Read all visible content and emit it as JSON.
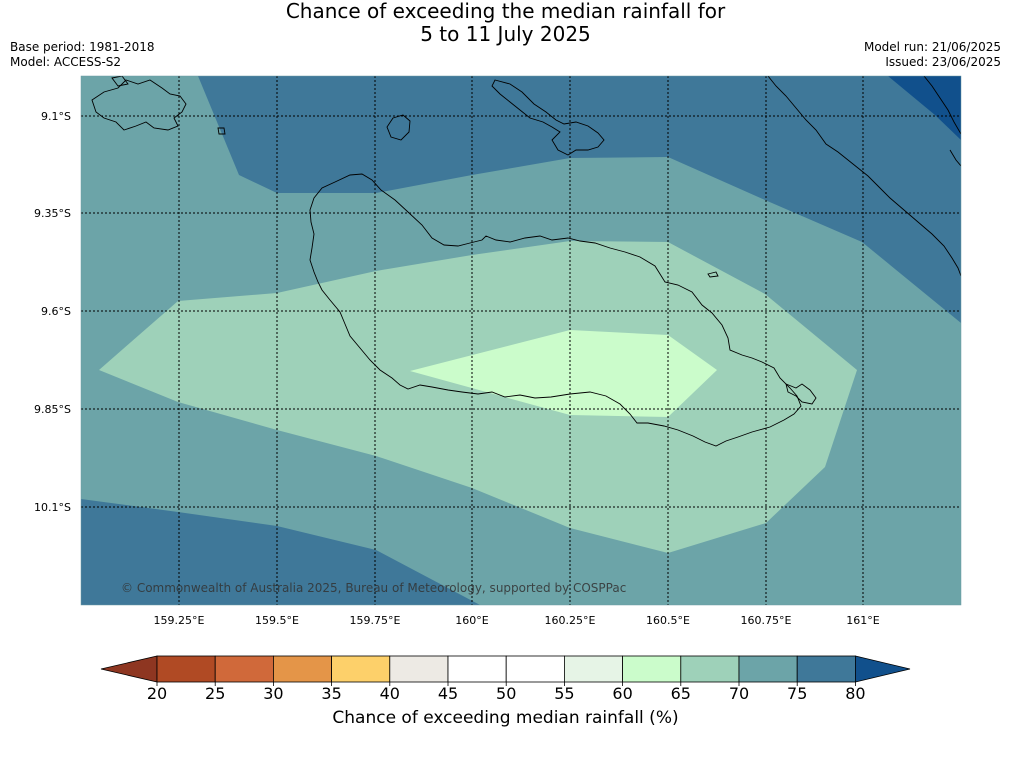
{
  "title": {
    "line1": "Chance of exceeding the median rainfall for",
    "line2": "5 to 11 July 2025"
  },
  "meta": {
    "base_period": "Base period: 1981-2018",
    "model": "Model: ACCESS-S2",
    "model_run": "Model run: 21/06/2025",
    "issued": "Issued: 23/06/2025"
  },
  "map": {
    "copyright": "© Commonwealth of Australia 2025, Bureau of Meteorology, supported by COSPPac",
    "lat_labels": [
      "9.1°S",
      "9.35°S",
      "9.6°S",
      "9.85°S",
      "10.1°S"
    ],
    "lon_labels": [
      "159.25°E",
      "159.5°E",
      "159.75°E",
      "160°E",
      "160.25°E",
      "160.5°E",
      "160.75°E",
      "161°E"
    ],
    "colors": {
      "c80": "#11508c",
      "c75": "#3f7899",
      "c70": "#6ca4a8",
      "c65": "#9ed1b9",
      "c60": "#cbfccb",
      "coast": "#000000"
    }
  },
  "colorbar": {
    "ticks": [
      "20",
      "25",
      "30",
      "35",
      "40",
      "45",
      "50",
      "55",
      "60",
      "65",
      "70",
      "75",
      "80"
    ],
    "colors": [
      "#b04a24",
      "#d0693a",
      "#e49548",
      "#fdd06a",
      "#edeae4",
      "#ffffff",
      "#ffffff",
      "#e6f4e6",
      "#cbfccb",
      "#9ed1b9",
      "#6ca4a8",
      "#3f7899"
    ],
    "under_color": "#8e3621",
    "over_color": "#11508c",
    "label": "Chance of exceeding median rainfall (%)"
  }
}
